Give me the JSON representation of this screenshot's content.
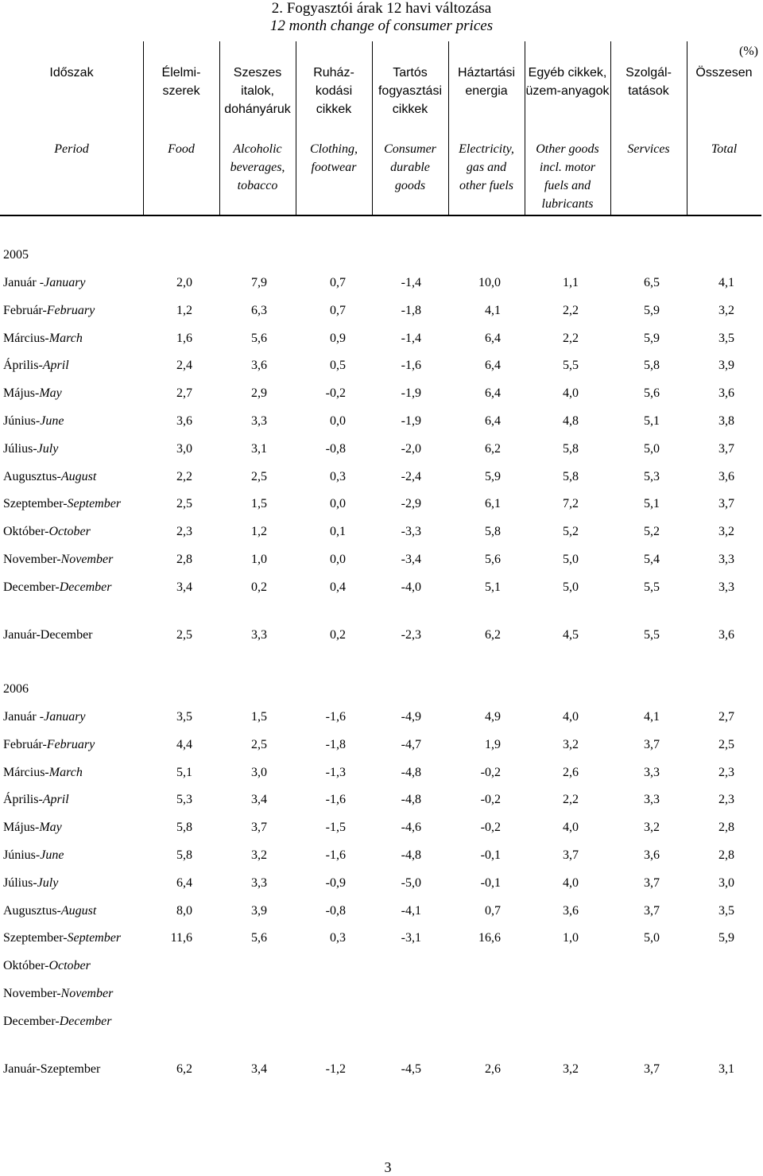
{
  "title": "2. Fogyasztói árak 12 havi változása",
  "subtitle": "12 month change of consumer prices",
  "unit": "(%)",
  "columns_hu": [
    "Időszak",
    "Élelmi-\nszerek",
    "Szeszes\nitalok,\ndohányáruk",
    "Ruház-\nkodási\ncikkek",
    "Tartós\nfogyasztási\ncikkek",
    "Háztartási\nenergia",
    "Egyéb cikkek,\nüzem-anyagok",
    "Szolgál-\ntatások",
    "Összesen"
  ],
  "columns_en": [
    "Period",
    "Food",
    "Alcoholic\nbeverages,\ntobacco",
    "Clothing,\nfootwear",
    "Consumer\ndurable\ngoods",
    "Electricity,\ngas and\nother fuels",
    "Other goods\nincl. motor\nfuels and\nlubricants",
    "Services",
    "Total"
  ],
  "sections": [
    {
      "year": "2005",
      "rows": [
        {
          "hu": "Január -",
          "en": "January",
          "v": [
            "2,0",
            "7,9",
            "0,7",
            "-1,4",
            "10,0",
            "1,1",
            "6,5",
            "4,1"
          ]
        },
        {
          "hu": "Február-",
          "en": "February",
          "v": [
            "1,2",
            "6,3",
            "0,7",
            "-1,8",
            "4,1",
            "2,2",
            "5,9",
            "3,2"
          ]
        },
        {
          "hu": "Március-",
          "en": "March",
          "v": [
            "1,6",
            "5,6",
            "0,9",
            "-1,4",
            "6,4",
            "2,2",
            "5,9",
            "3,5"
          ]
        },
        {
          "hu": "Április-",
          "en": "April",
          "v": [
            "2,4",
            "3,6",
            "0,5",
            "-1,6",
            "6,4",
            "5,5",
            "5,8",
            "3,9"
          ]
        },
        {
          "hu": "Május-",
          "en": "May",
          "v": [
            "2,7",
            "2,9",
            "-0,2",
            "-1,9",
            "6,4",
            "4,0",
            "5,6",
            "3,6"
          ]
        },
        {
          "hu": "Június-",
          "en": "June",
          "v": [
            "3,6",
            "3,3",
            "0,0",
            "-1,9",
            "6,4",
            "4,8",
            "5,1",
            "3,8"
          ]
        },
        {
          "hu": "Július-",
          "en": "July",
          "v": [
            "3,0",
            "3,1",
            "-0,8",
            "-2,0",
            "6,2",
            "5,8",
            "5,0",
            "3,7"
          ]
        },
        {
          "hu": "Augusztus-",
          "en": "August",
          "v": [
            "2,2",
            "2,5",
            "0,3",
            "-2,4",
            "5,9",
            "5,8",
            "5,3",
            "3,6"
          ]
        },
        {
          "hu": "Szeptember-",
          "en": "September",
          "v": [
            "2,5",
            "1,5",
            "0,0",
            "-2,9",
            "6,1",
            "7,2",
            "5,1",
            "3,7"
          ]
        },
        {
          "hu": "Október-",
          "en": "October",
          "v": [
            "2,3",
            "1,2",
            "0,1",
            "-3,3",
            "5,8",
            "5,2",
            "5,2",
            "3,2"
          ]
        },
        {
          "hu": "November-",
          "en": "November",
          "v": [
            "2,8",
            "1,0",
            "0,0",
            "-3,4",
            "5,6",
            "5,0",
            "5,4",
            "3,3"
          ]
        },
        {
          "hu": "December-",
          "en": "December",
          "v": [
            "3,4",
            "0,2",
            "0,4",
            "-4,0",
            "5,1",
            "5,0",
            "5,5",
            "3,3"
          ]
        }
      ],
      "summary": {
        "hu": "Január-December",
        "en": "",
        "v": [
          "2,5",
          "3,3",
          "0,2",
          "-2,3",
          "6,2",
          "4,5",
          "5,5",
          "3,6"
        ]
      }
    },
    {
      "year": "2006",
      "rows": [
        {
          "hu": "Január -",
          "en": "January",
          "v": [
            "3,5",
            "1,5",
            "-1,6",
            "-4,9",
            "4,9",
            "4,0",
            "4,1",
            "2,7"
          ]
        },
        {
          "hu": "Február-",
          "en": "February",
          "v": [
            "4,4",
            "2,5",
            "-1,8",
            "-4,7",
            "1,9",
            "3,2",
            "3,7",
            "2,5"
          ]
        },
        {
          "hu": "Március-",
          "en": "March",
          "v": [
            "5,1",
            "3,0",
            "-1,3",
            "-4,8",
            "-0,2",
            "2,6",
            "3,3",
            "2,3"
          ]
        },
        {
          "hu": "Április-",
          "en": "April",
          "v": [
            "5,3",
            "3,4",
            "-1,6",
            "-4,8",
            "-0,2",
            "2,2",
            "3,3",
            "2,3"
          ]
        },
        {
          "hu": "Május-",
          "en": "May",
          "v": [
            "5,8",
            "3,7",
            "-1,5",
            "-4,6",
            "-0,2",
            "4,0",
            "3,2",
            "2,8"
          ]
        },
        {
          "hu": "Június-",
          "en": "June",
          "v": [
            "5,8",
            "3,2",
            "-1,6",
            "-4,8",
            "-0,1",
            "3,7",
            "3,6",
            "2,8"
          ]
        },
        {
          "hu": "Július-",
          "en": "July",
          "v": [
            "6,4",
            "3,3",
            "-0,9",
            "-5,0",
            "-0,1",
            "4,0",
            "3,7",
            "3,0"
          ]
        },
        {
          "hu": "Augusztus-",
          "en": "August",
          "v": [
            "8,0",
            "3,9",
            "-0,8",
            "-4,1",
            "0,7",
            "3,6",
            "3,7",
            "3,5"
          ]
        },
        {
          "hu": "Szeptember-",
          "en": "September",
          "v": [
            "11,6",
            "5,6",
            "0,3",
            "-3,1",
            "16,6",
            "1,0",
            "5,0",
            "5,9"
          ]
        },
        {
          "hu": "Október-",
          "en": "October",
          "v": [
            "",
            "",
            "",
            "",
            "",
            "",
            "",
            ""
          ]
        },
        {
          "hu": "November-",
          "en": "November",
          "v": [
            "",
            "",
            "",
            "",
            "",
            "",
            "",
            ""
          ]
        },
        {
          "hu": "December-",
          "en": "December",
          "v": [
            "",
            "",
            "",
            "",
            "",
            "",
            "",
            ""
          ]
        }
      ],
      "summary": {
        "hu": "Január-Szeptember",
        "en": "",
        "v": [
          "6,2",
          "3,4",
          "-1,2",
          "-4,5",
          "2,6",
          "3,2",
          "3,7",
          "3,1"
        ]
      }
    }
  ],
  "page_number": "3"
}
